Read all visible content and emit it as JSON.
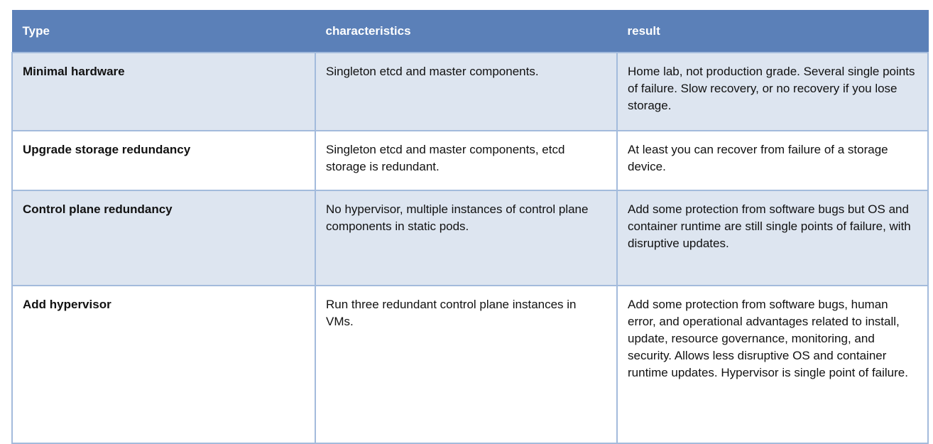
{
  "table": {
    "headers": [
      "Type",
      "characteristics",
      "result"
    ],
    "rows": [
      {
        "type": "Minimal hardware",
        "characteristics": "Singleton etcd and master components.",
        "result": "Home lab, not production grade. Several single points of failure. Slow recovery, or no recovery if you lose storage."
      },
      {
        "type": "Upgrade storage redundancy",
        "characteristics": "Singleton etcd and master components, etcd storage is redundant.",
        "result": "At least you can recover from failure of a storage device."
      },
      {
        "type": "Control plane redundancy",
        "characteristics": "No hypervisor, multiple instances of control plane components in static pods.",
        "result": "Add some protection from software bugs but OS and container runtime are still single points of failure, with disruptive updates."
      },
      {
        "type": "Add hypervisor",
        "characteristics": "Run three redundant control plane instances in VMs.",
        "result": "Add some protection from software bugs, human error, and operational advantages related to install, update, resource governance, monitoring, and security. Allows less disruptive OS and container runtime updates. Hypervisor is single point of failure."
      }
    ]
  },
  "colors": {
    "header_bg": "#5b80b8",
    "alt_row_bg": "#dde5f0",
    "border": "#a3bbdc"
  }
}
